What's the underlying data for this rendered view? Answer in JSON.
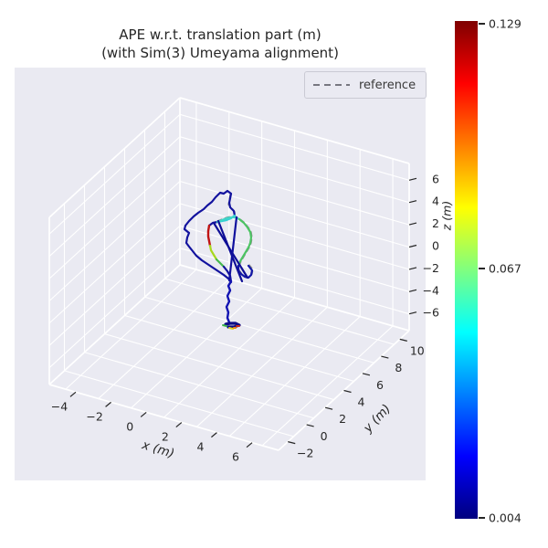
{
  "title": {
    "line1": "APE w.r.t. translation part (m)",
    "line2": "(with Sim(3) Umeyama alignment)"
  },
  "legend": {
    "items": [
      {
        "label": "reference",
        "style": "dashed",
        "color": "#777780"
      }
    ]
  },
  "colorbar": {
    "ticks": [
      "0.129",
      "0.067",
      "0.004"
    ],
    "tick_values": [
      0.129,
      0.067,
      0.004
    ],
    "cmap": "jet",
    "unit": "m"
  },
  "chart_data": {
    "type": "line3d-trajectory",
    "title": "APE w.r.t. translation part (m) (with Sim(3) Umeyama alignment)",
    "legend_entries": [
      "reference"
    ],
    "grid": true,
    "axes": {
      "x": {
        "label": "x (m)",
        "ticks": [
          -4,
          -2,
          0,
          2,
          4,
          6
        ],
        "range": [
          -5.5,
          7.5
        ]
      },
      "y": {
        "label": "y (m)",
        "ticks": [
          -2,
          0,
          2,
          4,
          6,
          8,
          10
        ],
        "range": [
          -3,
          11
        ]
      },
      "z": {
        "label": "z (m)",
        "ticks": [
          6,
          4,
          2,
          0,
          -2,
          -4,
          -6
        ],
        "range": [
          -7.5,
          7.5
        ]
      }
    },
    "colorbar": {
      "min": 0.004,
      "mid": 0.067,
      "max": 0.129,
      "cmap": "jet",
      "unit": "m"
    },
    "trajectory": {
      "segments": [
        {
          "name": "outer-loop-navy",
          "color": "#12129e",
          "width": 2.2,
          "points": [
            [
              257,
              236
            ],
            [
              256,
              231
            ],
            [
              252,
              227
            ],
            [
              251,
              222
            ],
            [
              252,
              217
            ],
            [
              253,
              212
            ],
            [
              249,
              209
            ],
            [
              245,
              212
            ],
            [
              241,
              211
            ],
            [
              236,
              216
            ],
            [
              232,
              221
            ],
            [
              227,
              225
            ],
            [
              223,
              229
            ],
            [
              217,
              233
            ],
            [
              212,
              237
            ],
            [
              207,
              242
            ],
            [
              203,
              247
            ],
            [
              202,
              251
            ],
            [
              207,
              255
            ],
            [
              205,
              260
            ],
            [
              204,
              266
            ],
            [
              207,
              270
            ],
            [
              211,
              275
            ],
            [
              215,
              280
            ],
            [
              221,
              285
            ],
            [
              227,
              289
            ],
            [
              233,
              293
            ],
            [
              239,
              297
            ],
            [
              245,
              301
            ],
            [
              250,
              305
            ],
            [
              253,
              309
            ]
          ]
        },
        {
          "name": "cyan-top",
          "color": "#35cfd4",
          "width": 2.2,
          "points": [
            [
              257,
              236
            ],
            [
              253,
              239
            ],
            [
              248,
              241
            ],
            [
              243,
              242
            ],
            [
              238,
              243
            ]
          ]
        },
        {
          "name": "link-navy",
          "color": "#12129e",
          "width": 2.2,
          "points": [
            [
              238,
              243
            ],
            [
              233,
              244
            ],
            [
              229,
              247
            ]
          ]
        },
        {
          "name": "red-segment",
          "color": "#c01414",
          "width": 2.4,
          "points": [
            [
              229,
              247
            ],
            [
              228,
              253
            ],
            [
              228,
              259
            ],
            [
              229,
              264
            ],
            [
              230,
              269
            ]
          ]
        },
        {
          "name": "chartreuse-segment",
          "color": "#a8d81e",
          "width": 2.2,
          "points": [
            [
              230,
              269
            ],
            [
              231,
              274
            ],
            [
              234,
              279
            ],
            [
              237,
              284
            ]
          ]
        },
        {
          "name": "green-lower",
          "color": "#46b84e",
          "width": 2.2,
          "points": [
            [
              237,
              284
            ],
            [
              241,
              288
            ],
            [
              245,
              292
            ]
          ]
        },
        {
          "name": "navy-to-junction",
          "color": "#12129e",
          "width": 2.2,
          "points": [
            [
              245,
              292
            ],
            [
              249,
              297
            ],
            [
              252,
              302
            ],
            [
              253,
              308
            ]
          ]
        },
        {
          "name": "inner-cyan-arc",
          "color": "#3fd6c8",
          "width": 2.2,
          "points": [
            [
              238,
              243
            ],
            [
              243,
              241
            ],
            [
              248,
              239
            ],
            [
              253,
              238
            ],
            [
              258,
              238
            ],
            [
              262,
              240
            ]
          ]
        },
        {
          "name": "inner-green-right",
          "color": "#4cc463",
          "width": 2.2,
          "points": [
            [
              262,
              240
            ],
            [
              267,
              244
            ],
            [
              271,
              249
            ],
            [
              274,
              254
            ],
            [
              275,
              260
            ],
            [
              274,
              266
            ],
            [
              272,
              271
            ],
            [
              269,
              276
            ],
            [
              266,
              281
            ],
            [
              263,
              286
            ],
            [
              261,
              291
            ]
          ]
        },
        {
          "name": "inner-bottom-navy",
          "color": "#1217a8",
          "width": 2.2,
          "points": [
            [
              261,
              291
            ],
            [
              261,
              296
            ],
            [
              264,
              300
            ],
            [
              268,
              303
            ],
            [
              272,
              304
            ],
            [
              275,
              301
            ],
            [
              276,
              296
            ],
            [
              272,
              291
            ]
          ]
        },
        {
          "name": "diagonal-1",
          "color": "#0e0e96",
          "width": 2.2,
          "points": [
            [
              234,
              244
            ],
            [
              271,
              304
            ]
          ]
        },
        {
          "name": "diagonal-2",
          "color": "#0e0e96",
          "width": 2.2,
          "points": [
            [
              239,
              242
            ],
            [
              265,
              308
            ]
          ]
        },
        {
          "name": "diagonal-3",
          "color": "#10109e",
          "width": 2.2,
          "points": [
            [
              259,
              238
            ],
            [
              251,
              307
            ]
          ]
        },
        {
          "name": "tail",
          "color": "#1213b2",
          "width": 2.4,
          "points": [
            [
              253,
              308
            ],
            [
              250,
              313
            ],
            [
              252,
              318
            ],
            [
              249,
              324
            ],
            [
              251,
              330
            ],
            [
              248,
              336
            ],
            [
              250,
              342
            ],
            [
              249,
              348
            ],
            [
              251,
              353
            ]
          ]
        },
        {
          "name": "end-blob-navy",
          "color": "#0d0d86",
          "width": 3.2,
          "points": [
            [
              247,
              355
            ],
            [
              252,
              354
            ],
            [
              258,
              354
            ],
            [
              262,
              356
            ],
            [
              256,
              358
            ],
            [
              250,
              358
            ]
          ]
        },
        {
          "name": "end-green",
          "color": "#3cb44a",
          "width": 2,
          "points": [
            [
              244,
              356
            ],
            [
              248,
              357
            ]
          ]
        },
        {
          "name": "end-yellow",
          "color": "#ddd61f",
          "width": 2,
          "points": [
            [
              251,
              359
            ],
            [
              255,
              360
            ]
          ]
        },
        {
          "name": "end-orange",
          "color": "#f08616",
          "width": 2,
          "points": [
            [
              256,
              359
            ],
            [
              258,
              359
            ]
          ]
        },
        {
          "name": "end-red",
          "color": "#c8281e",
          "width": 2,
          "points": [
            [
              259,
              357
            ],
            [
              262,
              357
            ]
          ]
        }
      ],
      "reference_paths": [
        {
          "name": "reference-inner-loop",
          "points": [
            [
              238,
              242
            ],
            [
              243,
              240
            ],
            [
              248,
              238
            ],
            [
              253,
              237
            ],
            [
              258,
              237
            ],
            [
              263,
              240
            ],
            [
              268,
              244
            ],
            [
              272,
              249
            ],
            [
              275,
              254
            ],
            [
              276,
              260
            ],
            [
              275,
              266
            ],
            [
              273,
              271
            ],
            [
              270,
              276
            ],
            [
              267,
              281
            ],
            [
              264,
              286
            ],
            [
              262,
              291
            ],
            [
              262,
              296
            ],
            [
              265,
              300
            ],
            [
              269,
              303
            ],
            [
              273,
              304
            ],
            [
              276,
              300
            ],
            [
              277,
              295
            ],
            [
              273,
              290
            ]
          ]
        },
        {
          "name": "reference-tail",
          "points": [
            [
              253,
              309
            ],
            [
              250,
              314
            ],
            [
              252,
              319
            ],
            [
              249,
              325
            ],
            [
              251,
              331
            ],
            [
              248,
              337
            ],
            [
              250,
              343
            ],
            [
              249,
              349
            ],
            [
              252,
              354
            ],
            [
              257,
              355
            ],
            [
              261,
              357
            ]
          ]
        },
        {
          "name": "reference-top",
          "points": [
            [
              252,
              213
            ],
            [
              251,
              219
            ],
            [
              250,
              224
            ],
            [
              254,
              228
            ],
            [
              257,
              232
            ],
            [
              257,
              236
            ],
            [
              253,
              239
            ],
            [
              248,
              241
            ],
            [
              243,
              242
            ],
            [
              238,
              243
            ]
          ]
        }
      ],
      "reference_style": {
        "color": "#8c8c8c",
        "dash": "5 4",
        "width": 1.4
      }
    }
  }
}
